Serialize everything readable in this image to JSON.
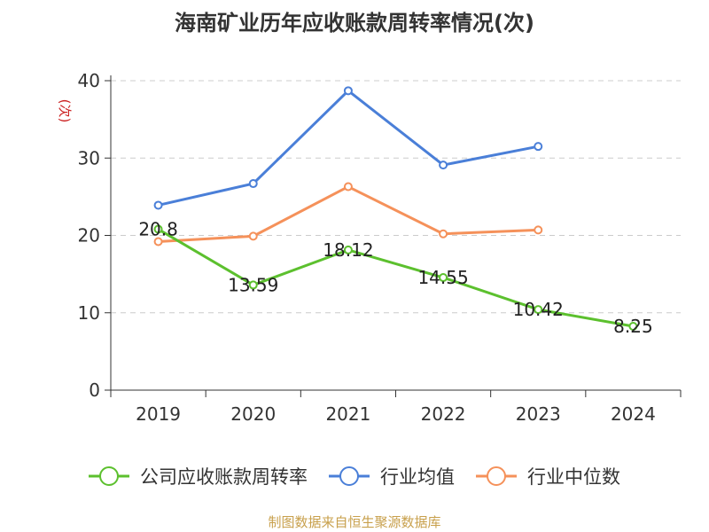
{
  "chart_data": {
    "type": "line",
    "title": "海南矿业历年应收账款周转率情况(次)",
    "ylabel": "(次)",
    "xlabel": "",
    "categories": [
      "2019",
      "2020",
      "2021",
      "2022",
      "2023",
      "2024"
    ],
    "ylim": [
      0,
      40
    ],
    "yticks": [
      0,
      10,
      20,
      30,
      40
    ],
    "grid": true,
    "legend_position": "bottom",
    "series": [
      {
        "name": "公司应收账款周转率",
        "color": "#5cc02e",
        "values": [
          20.8,
          13.59,
          18.12,
          14.55,
          10.42,
          8.25
        ],
        "labels": [
          "20.8",
          "13.59",
          "18.12",
          "14.55",
          "10.42",
          "8.25"
        ]
      },
      {
        "name": "行业均值",
        "color": "#4a7fd8",
        "values": [
          23.9,
          26.7,
          38.7,
          29.1,
          31.5,
          null
        ]
      },
      {
        "name": "行业中位数",
        "color": "#f5915a",
        "values": [
          19.2,
          19.9,
          26.3,
          20.2,
          20.7,
          null
        ]
      }
    ]
  },
  "source": "制图数据来自恒生聚源数据库"
}
